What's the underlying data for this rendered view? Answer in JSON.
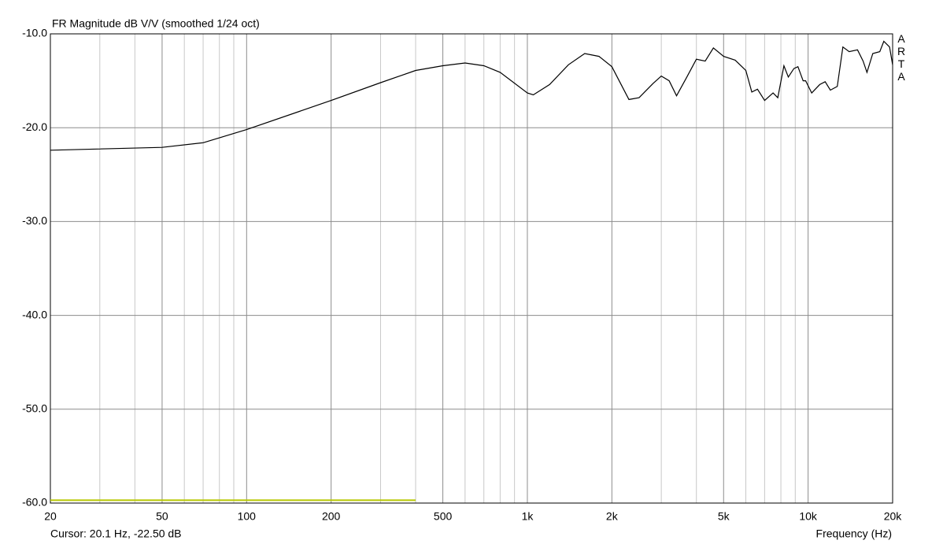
{
  "chart_data": {
    "type": "line",
    "title": "FR Magnitude dB V/V (smoothed 1/24 oct)",
    "x_label": "Frequency (Hz)",
    "status": "Cursor: 20.1 Hz, -22.50 dB",
    "watermark": "ARTA",
    "x_log": true,
    "grid": true,
    "xlim": [
      20,
      20000
    ],
    "ylim": [
      -60,
      -10
    ],
    "xticks": [
      20,
      50,
      100,
      200,
      500,
      {
        "value": 1000,
        "label": "1k"
      },
      {
        "value": 2000,
        "label": "2k"
      },
      {
        "value": 5000,
        "label": "5k"
      },
      {
        "value": 10000,
        "label": "10k"
      },
      {
        "value": 20000,
        "label": "20k"
      }
    ],
    "x_minor_grid": [
      30,
      40,
      60,
      70,
      80,
      90,
      300,
      400,
      600,
      700,
      800,
      900,
      3000,
      4000,
      6000,
      7000,
      8000,
      9000
    ],
    "yticks": [
      {
        "value": -60,
        "label": "-60.0"
      },
      {
        "value": -50,
        "label": "-50.0"
      },
      {
        "value": -40,
        "label": "-40.0"
      },
      {
        "value": -30,
        "label": "-30.0"
      },
      {
        "value": -20,
        "label": "-20.0"
      },
      {
        "value": -10,
        "label": "-10.0"
      }
    ],
    "marker_range": {
      "x": [
        20,
        400
      ],
      "y": -59.7,
      "color": "#b8c800"
    },
    "series": [
      {
        "color": "#000000",
        "x": [
          20,
          50,
          70,
          100,
          200,
          300,
          400,
          500,
          600,
          700,
          800,
          1000,
          1050,
          1200,
          1400,
          1600,
          1800,
          2000,
          2300,
          2500,
          2800,
          3000,
          3200,
          3400,
          3700,
          4000,
          4300,
          4600,
          5000,
          5500,
          6000,
          6300,
          6600,
          7000,
          7500,
          7800,
          8200,
          8500,
          8900,
          9200,
          9600,
          9800,
          10300,
          11000,
          11500,
          12000,
          12700,
          13300,
          14000,
          15000,
          15700,
          16200,
          17000,
          18000,
          18600,
          19500,
          20000
        ],
        "values": [
          -22.4,
          -22.1,
          -21.6,
          -20.2,
          -17.1,
          -15.2,
          -13.9,
          -13.4,
          -13.1,
          -13.4,
          -14.1,
          -16.3,
          -16.5,
          -15.4,
          -13.3,
          -12.1,
          -12.4,
          -13.5,
          -17.0,
          -16.8,
          -15.3,
          -14.5,
          -15.0,
          -16.6,
          -14.6,
          -12.7,
          -12.9,
          -11.5,
          -12.4,
          -12.8,
          -13.9,
          -16.2,
          -15.9,
          -17.1,
          -16.3,
          -16.8,
          -13.4,
          -14.6,
          -13.7,
          -13.5,
          -15.0,
          -15.0,
          -16.3,
          -15.4,
          -15.1,
          -16.0,
          -15.6,
          -11.4,
          -11.9,
          -11.7,
          -12.9,
          -14.1,
          -12.1,
          -11.9,
          -10.8,
          -11.4,
          -13.3
        ]
      }
    ]
  }
}
